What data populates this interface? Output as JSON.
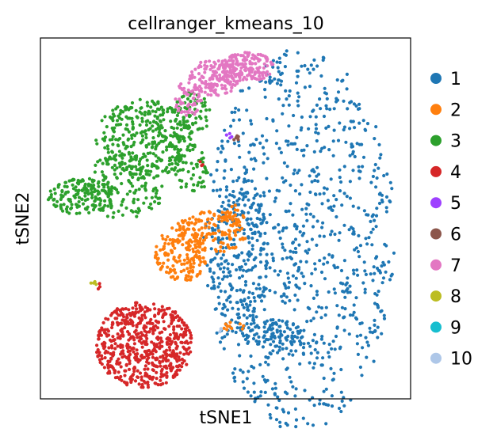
{
  "chart_data": {
    "type": "scatter",
    "title": "cellranger_kmeans_10",
    "xlabel": "tSNE1",
    "ylabel": "tSNE2",
    "xlim": [
      0,
      100
    ],
    "ylim": [
      0,
      100
    ],
    "ticks": false,
    "grid": false,
    "legend_placement": "right",
    "series": [
      {
        "name": "1",
        "color": "#1f77b4",
        "clusters": [
          {
            "cx": 70,
            "cy": 44,
            "rx": 26,
            "ry": 53,
            "n": 900
          },
          {
            "cx": 54,
            "cy": 40,
            "rx": 8,
            "ry": 22,
            "n": 200
          },
          {
            "cx": 62,
            "cy": 18,
            "rx": 9,
            "ry": 4,
            "n": 80
          }
        ]
      },
      {
        "name": "2",
        "color": "#ff7f0e",
        "clusters": [
          {
            "cx": 38,
            "cy": 40,
            "rx": 7,
            "ry": 8,
            "n": 150
          },
          {
            "cx": 46,
            "cy": 46,
            "rx": 10,
            "ry": 6,
            "n": 150
          },
          {
            "cx": 53,
            "cy": 51,
            "rx": 3,
            "ry": 3,
            "n": 20
          },
          {
            "cx": 52,
            "cy": 20,
            "rx": 3,
            "ry": 1.5,
            "n": 10
          }
        ]
      },
      {
        "name": "3",
        "color": "#2ca02c",
        "clusters": [
          {
            "cx": 11,
            "cy": 56,
            "rx": 9,
            "ry": 5,
            "n": 150
          },
          {
            "cx": 22,
            "cy": 59,
            "rx": 12,
            "ry": 9,
            "n": 150
          },
          {
            "cx": 28,
            "cy": 72,
            "rx": 13,
            "ry": 11,
            "n": 350
          },
          {
            "cx": 41,
            "cy": 79,
            "rx": 5,
            "ry": 6,
            "n": 70
          },
          {
            "cx": 41,
            "cy": 64,
            "rx": 5,
            "ry": 7,
            "n": 60
          }
        ]
      },
      {
        "name": "4",
        "color": "#d62728",
        "clusters": [
          {
            "cx": 28,
            "cy": 15,
            "rx": 13,
            "ry": 12,
            "n": 600
          },
          {
            "cx": 43,
            "cy": 65,
            "rx": 1,
            "ry": 1,
            "n": 3
          },
          {
            "cx": 16,
            "cy": 31,
            "rx": 1,
            "ry": 1,
            "n": 3
          }
        ]
      },
      {
        "name": "5",
        "color": "#9e40ff",
        "clusters": [
          {
            "cx": 51,
            "cy": 73,
            "rx": 1,
            "ry": 0.8,
            "n": 4
          }
        ]
      },
      {
        "name": "6",
        "color": "#8c564b",
        "clusters": [
          {
            "cx": 53,
            "cy": 72,
            "rx": 1,
            "ry": 1,
            "n": 5
          }
        ]
      },
      {
        "name": "7",
        "color": "#e377c2",
        "clusters": [
          {
            "cx": 47,
            "cy": 89,
            "rx": 7,
            "ry": 5,
            "n": 150
          },
          {
            "cx": 56,
            "cy": 92,
            "rx": 7,
            "ry": 4,
            "n": 150
          },
          {
            "cx": 40,
            "cy": 83,
            "rx": 4,
            "ry": 5,
            "n": 60
          }
        ]
      },
      {
        "name": "8",
        "color": "#bcbd22",
        "clusters": [
          {
            "cx": 14.5,
            "cy": 32,
            "rx": 1,
            "ry": 0.7,
            "n": 4
          }
        ]
      },
      {
        "name": "9",
        "color": "#17becf",
        "clusters": []
      },
      {
        "name": "10",
        "color": "#aec7e8",
        "clusters": [
          {
            "cx": 49,
            "cy": 19,
            "rx": 1,
            "ry": 0.6,
            "n": 3
          }
        ]
      }
    ]
  }
}
